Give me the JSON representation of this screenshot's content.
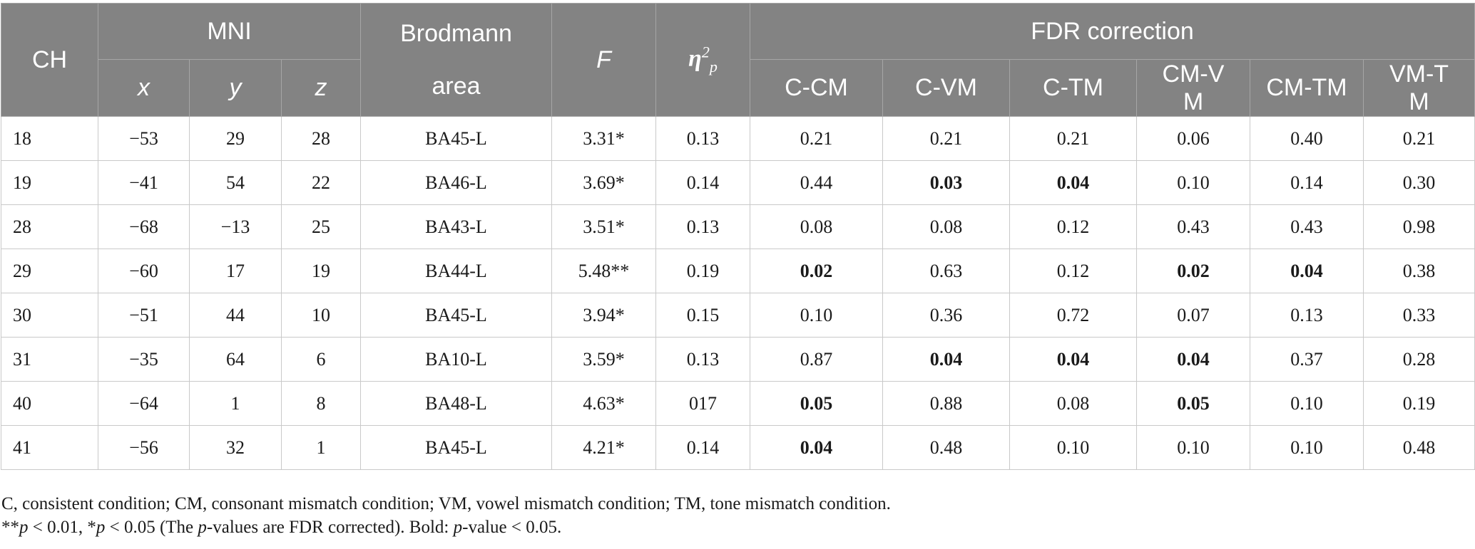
{
  "table": {
    "headers": {
      "ch": "CH",
      "mni": "MNI",
      "x": "x",
      "y": "y",
      "z": "z",
      "brodmann_top": "Brodmann",
      "brodmann_bottom": "area",
      "f": "F",
      "eta_base": "η",
      "eta_sup": "2",
      "eta_sub": "p",
      "fdr": "FDR correction",
      "c_cm": "C-CM",
      "c_vm": "C-VM",
      "c_tm": "C-TM",
      "cm_vm": "CM-VM",
      "cm_tm": "CM-TM",
      "vm_tm": "VM-TM"
    },
    "rows": [
      {
        "ch": "18",
        "x": "−53",
        "y": "29",
        "z": "28",
        "area": "BA45-L",
        "f": "3.31*",
        "eta": "0.13",
        "c_cm": "0.21",
        "c_vm": "0.21",
        "c_tm": "0.21",
        "cm_vm": "0.06",
        "cm_tm": "0.40",
        "vm_tm": "0.21"
      },
      {
        "ch": "19",
        "x": "−41",
        "y": "54",
        "z": "22",
        "area": "BA46-L",
        "f": "3.69*",
        "eta": "0.14",
        "c_cm": "0.44",
        "c_vm": "0.03",
        "c_tm": "0.04",
        "cm_vm": "0.10",
        "cm_tm": "0.14",
        "vm_tm": "0.30"
      },
      {
        "ch": "28",
        "x": "−68",
        "y": "−13",
        "z": "25",
        "area": "BA43-L",
        "f": "3.51*",
        "eta": "0.13",
        "c_cm": "0.08",
        "c_vm": "0.08",
        "c_tm": "0.12",
        "cm_vm": "0.43",
        "cm_tm": "0.43",
        "vm_tm": "0.98"
      },
      {
        "ch": "29",
        "x": "−60",
        "y": "17",
        "z": "19",
        "area": "BA44-L",
        "f": "5.48**",
        "eta": "0.19",
        "c_cm": "0.02",
        "c_vm": "0.63",
        "c_tm": "0.12",
        "cm_vm": "0.02",
        "cm_tm": "0.04",
        "vm_tm": "0.38"
      },
      {
        "ch": "30",
        "x": "−51",
        "y": "44",
        "z": "10",
        "area": "BA45-L",
        "f": "3.94*",
        "eta": "0.15",
        "c_cm": "0.10",
        "c_vm": "0.36",
        "c_tm": "0.72",
        "cm_vm": "0.07",
        "cm_tm": "0.13",
        "vm_tm": "0.33"
      },
      {
        "ch": "31",
        "x": "−35",
        "y": "64",
        "z": "6",
        "area": "BA10-L",
        "f": "3.59*",
        "eta": "0.13",
        "c_cm": "0.87",
        "c_vm": "0.04",
        "c_tm": "0.04",
        "cm_vm": "0.04",
        "cm_tm": "0.37",
        "vm_tm": "0.28"
      },
      {
        "ch": "40",
        "x": "−64",
        "y": "1",
        "z": "8",
        "area": "BA48-L",
        "f": "4.63*",
        "eta": "017",
        "c_cm": "0.05",
        "c_vm": "0.88",
        "c_tm": "0.08",
        "cm_vm": "0.05",
        "cm_tm": "0.10",
        "vm_tm": "0.19"
      },
      {
        "ch": "41",
        "x": "−56",
        "y": "32",
        "z": "1",
        "area": "BA45-L",
        "f": "4.21*",
        "eta": "0.14",
        "c_cm": "0.04",
        "c_vm": "0.48",
        "c_tm": "0.10",
        "cm_vm": "0.10",
        "cm_tm": "0.10",
        "vm_tm": "0.48"
      }
    ]
  },
  "footnotes": {
    "line1": "C, consistent condition; CM, consonant mismatch condition; VM, vowel mismatch condition; TM, tone mismatch condition.",
    "line2_a": "**",
    "line2_p1": "p",
    "line2_b": " < 0.01, *",
    "line2_p2": "p",
    "line2_c": " < 0.05 (The ",
    "line2_p3": "p",
    "line2_d": "-values are FDR corrected). Bold: ",
    "line2_p4": "p",
    "line2_e": "-value < 0.05."
  }
}
